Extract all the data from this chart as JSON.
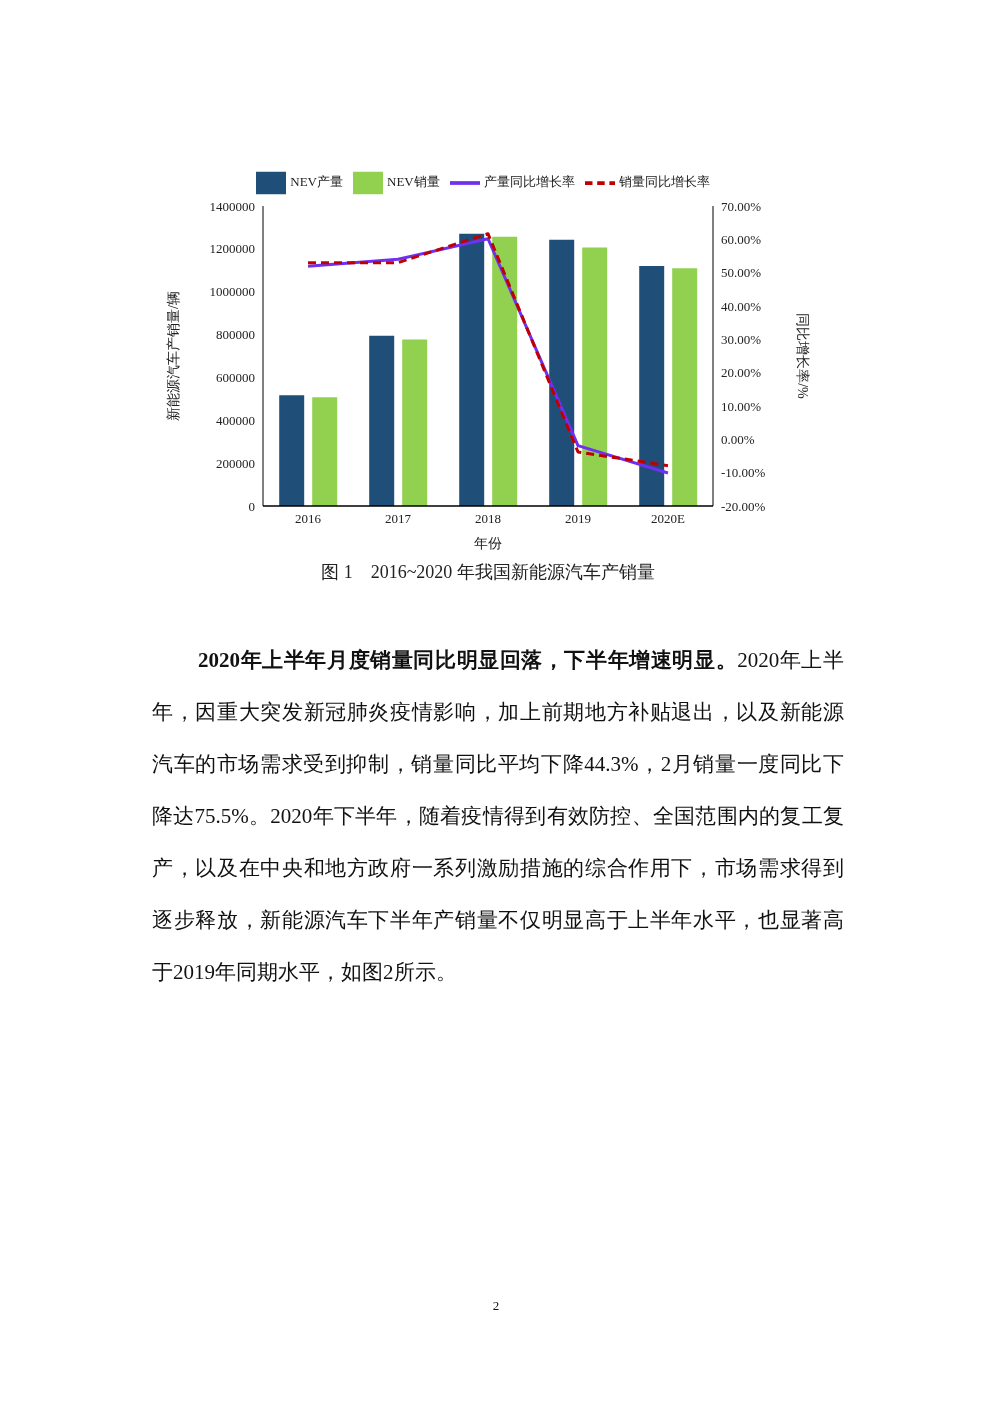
{
  "chart_data": {
    "type": "bar",
    "title": "图 1　2016~2020 年我国新能源汽车产销量",
    "xlabel": "年份",
    "ylabel": "新能源汽车产销量/辆",
    "y2label": "同比增长率/%",
    "categories": [
      "2016",
      "2017",
      "2018",
      "2019",
      "2020E"
    ],
    "series": [
      {
        "name": "NEV产量",
        "color": "#1f4e79",
        "values": [
          517000,
          794000,
          1270000,
          1242000,
          1120000
        ]
      },
      {
        "name": "NEV销量",
        "color": "#92d050",
        "values": [
          507000,
          777000,
          1256000,
          1206000,
          1110000
        ]
      },
      {
        "name": "产量同比增长率",
        "type": "line",
        "axis": "y2",
        "color": "#7030f0",
        "line_style": "solid",
        "values": [
          51.9,
          54.0,
          60.2,
          -1.9,
          -10.1
        ]
      },
      {
        "name": "销量同比增长率",
        "type": "line",
        "axis": "y2",
        "color": "#c00000",
        "line_style": "dashed",
        "values": [
          53.0,
          53.0,
          61.7,
          -3.8,
          -7.9
        ]
      }
    ],
    "ylim": [
      0,
      1400000
    ],
    "yticks": [
      0,
      200000,
      400000,
      600000,
      800000,
      1000000,
      1200000,
      1400000
    ],
    "y2lim": [
      -20,
      70
    ],
    "y2ticks": [
      {
        "value": -20,
        "label": "-20.00%"
      },
      {
        "value": -10,
        "label": "-10.00%"
      },
      {
        "value": 0,
        "label": "0.00%"
      },
      {
        "value": 10,
        "label": "10.00%"
      },
      {
        "value": 20,
        "label": "20.00%"
      },
      {
        "value": 30,
        "label": "30.00%"
      },
      {
        "value": 40,
        "label": "40.00%"
      },
      {
        "value": 50,
        "label": "50.00%"
      },
      {
        "value": 60,
        "label": "60.00%"
      },
      {
        "value": 70,
        "label": "70.00%"
      }
    ],
    "legend": "top",
    "marker": "none",
    "annotations": [
      "2020年上半年月度销量同比明显回落，下半年增速明显。",
      "2020年上半年，因重大突发新冠肺炎疫情影响，加上前期地方补贴退出，以及新能源汽车的市场需求受到抑制，销量同比平均下降44.3%，2月销量一度同比下降达75.5%。2020年下半年，随着疫情得到有效防控、全国范围内的复工复产，以及在中央和地方政府一系列激励措施的综合作用下，市场需求得到逐步释放，新能源汽车下半年产销量不仅明显高于上半年水平，也显著高于2019年同期水平，如图2所示。",
      "2"
    ]
  }
}
